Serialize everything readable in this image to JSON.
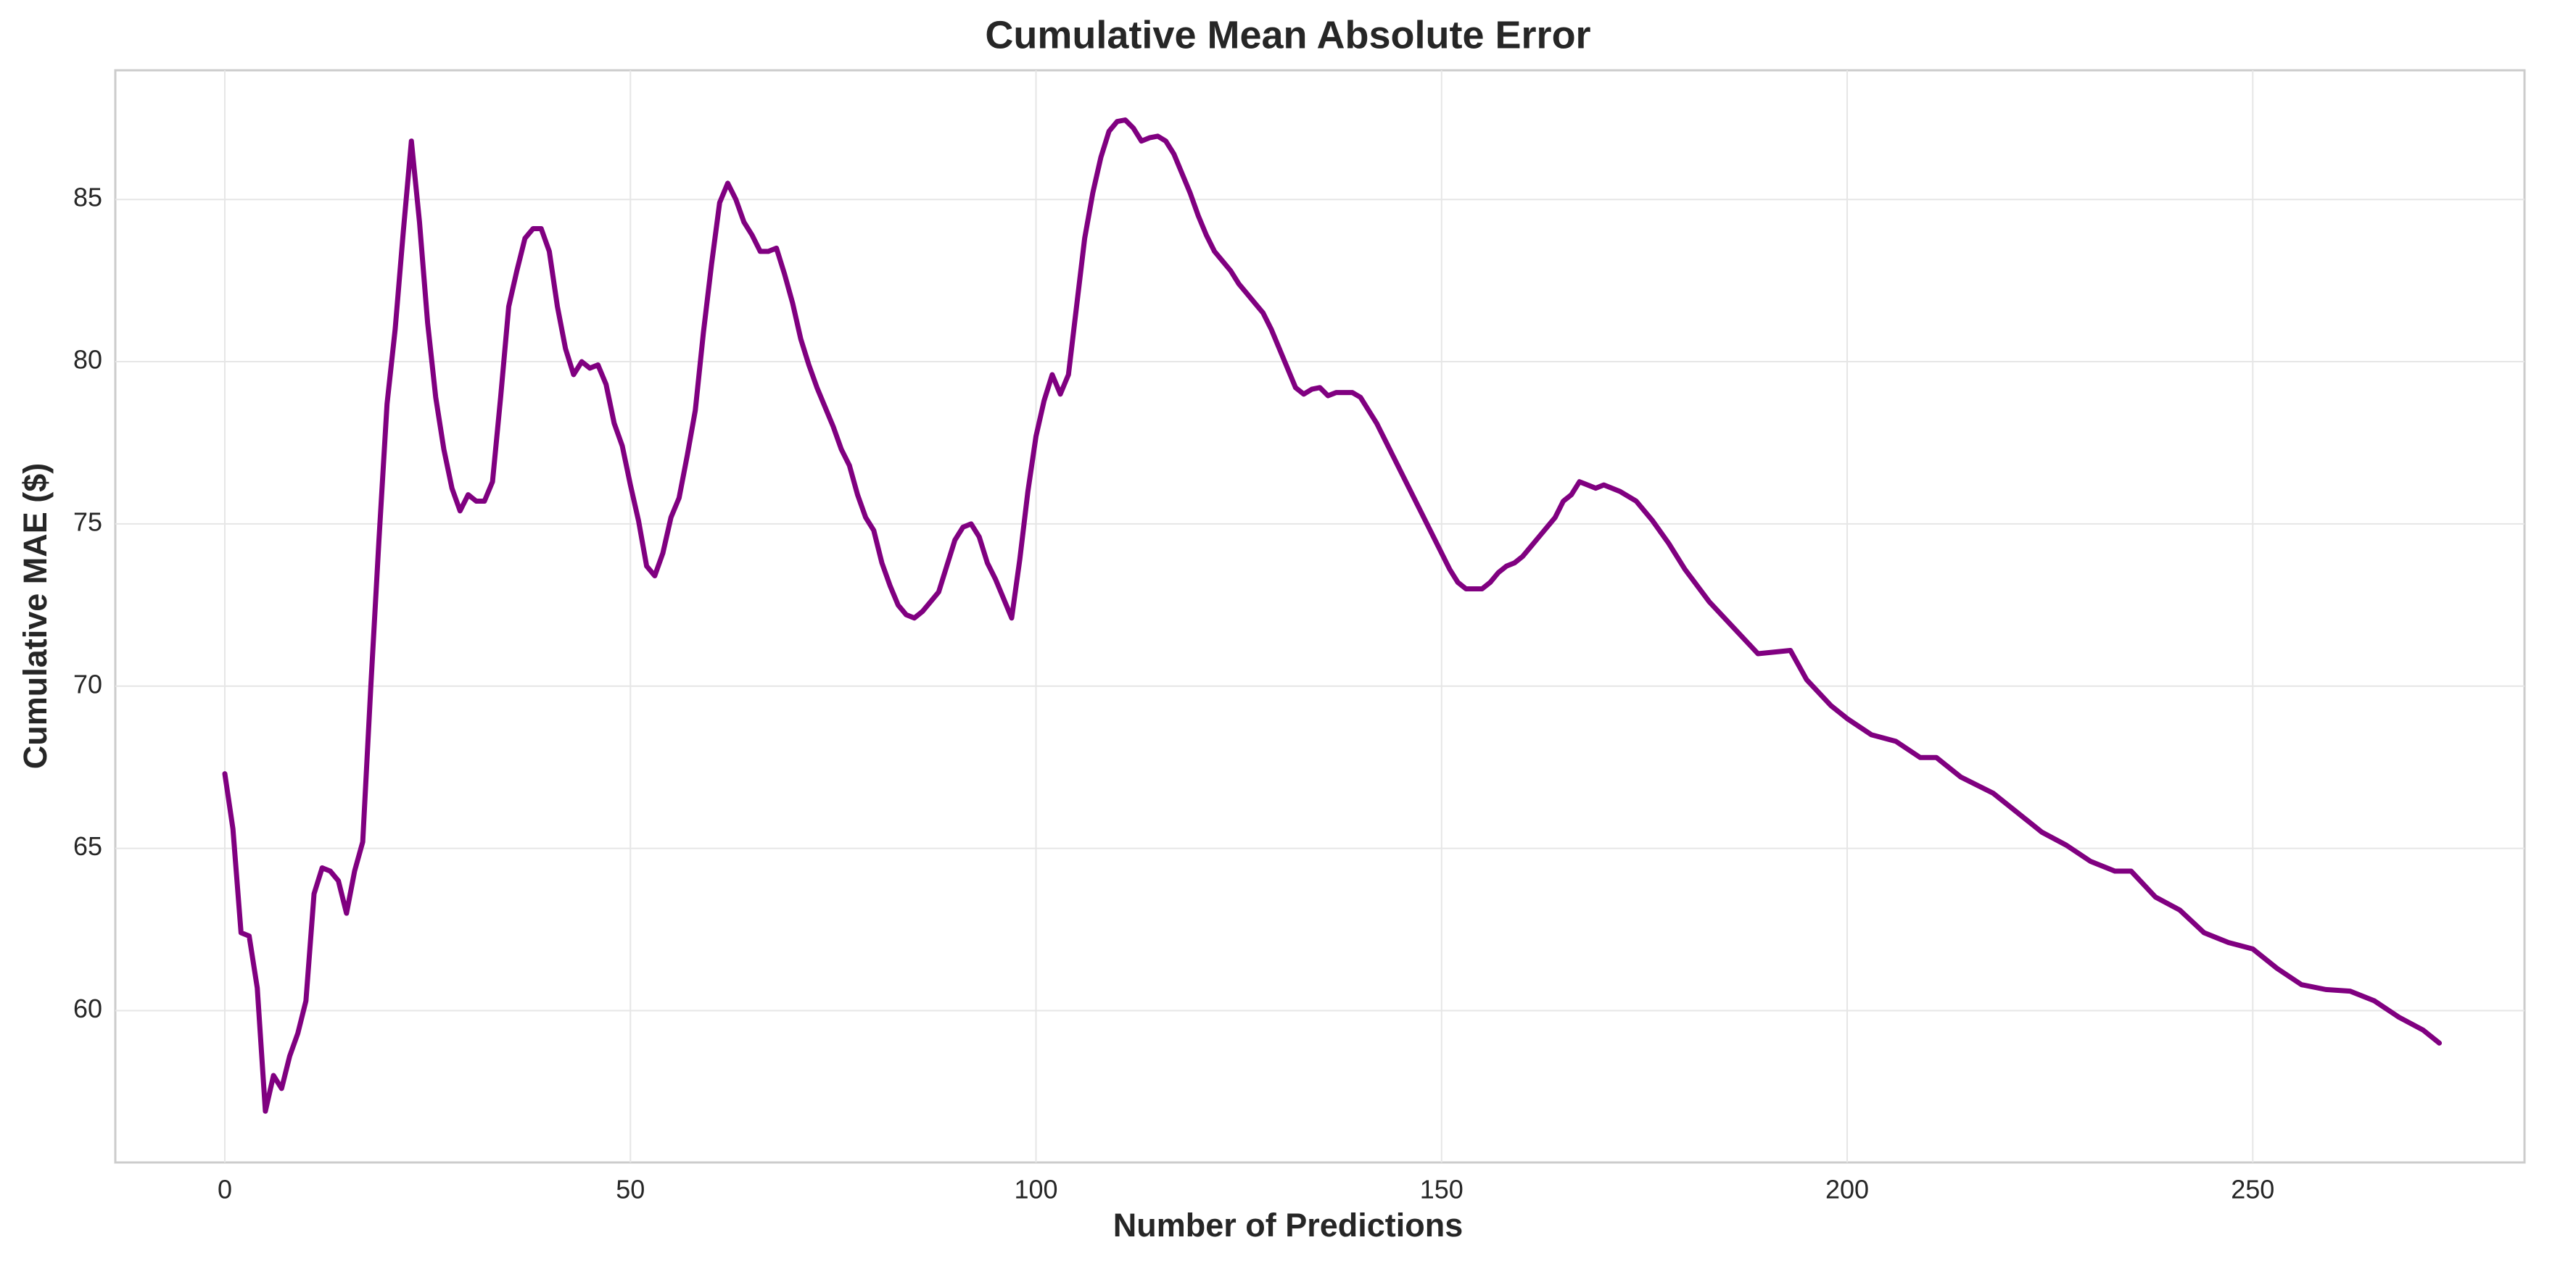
{
  "chart_data": {
    "type": "line",
    "title": "Cumulative Mean Absolute Error",
    "x_label": "Number of Predictions",
    "y_label": "Cumulative MAE ($)",
    "color": "#800080",
    "grid": true,
    "xlim": [
      -13.5,
      283.5
    ],
    "ylim": [
      55.32,
      88.98
    ],
    "xticks": [
      0,
      50,
      100,
      150,
      200,
      250
    ],
    "yticks": [
      60,
      65,
      70,
      75,
      80,
      85
    ],
    "x": [
      0,
      1,
      2,
      3,
      4,
      5,
      6,
      7,
      8,
      9,
      10,
      11,
      12,
      13,
      14,
      15,
      16,
      17,
      18,
      19,
      20,
      21,
      22,
      23,
      24,
      25,
      26,
      27,
      28,
      29,
      30,
      31,
      32,
      33,
      34,
      35,
      36,
      37,
      38,
      39,
      40,
      41,
      42,
      43,
      44,
      45,
      46,
      47,
      48,
      49,
      50,
      51,
      52,
      53,
      54,
      55,
      56,
      57,
      58,
      59,
      60,
      61,
      62,
      63,
      64,
      65,
      66,
      67,
      68,
      69,
      70,
      71,
      72,
      73,
      74,
      75,
      76,
      77,
      78,
      79,
      80,
      81,
      82,
      83,
      84,
      85,
      86,
      87,
      88,
      89,
      90,
      91,
      92,
      93,
      94,
      95,
      96,
      97,
      98,
      99,
      100,
      101,
      102,
      103,
      104,
      105,
      106,
      107,
      108,
      109,
      110,
      111,
      112,
      113,
      114,
      115,
      116,
      117,
      118,
      119,
      120,
      121,
      122,
      123,
      124,
      125,
      126,
      127,
      128,
      129,
      130,
      131,
      132,
      133,
      134,
      135,
      136,
      137,
      138,
      139,
      140,
      141,
      142,
      143,
      144,
      145,
      146,
      147,
      148,
      149,
      150,
      151,
      152,
      153,
      154,
      155,
      156,
      157,
      158,
      159,
      160,
      161,
      162,
      163,
      164,
      165,
      166,
      167,
      168,
      169,
      170,
      172,
      174,
      176,
      178,
      180,
      183,
      186,
      189,
      193,
      195,
      198,
      200,
      203,
      206,
      209,
      211,
      214,
      218,
      221,
      224,
      227,
      230,
      233,
      235,
      238,
      241,
      244,
      247,
      250,
      253,
      256,
      259,
      262,
      265,
      268,
      271,
      273
    ],
    "values": [
      67.3,
      65.6,
      62.4,
      62.3,
      60.7,
      56.9,
      58.0,
      57.6,
      58.6,
      59.3,
      60.3,
      63.6,
      64.4,
      64.3,
      64.0,
      63.0,
      64.3,
      65.2,
      70,
      74.5,
      78.7,
      81,
      84,
      86.8,
      84.3,
      81.2,
      78.9,
      77.3,
      76.1,
      75.4,
      75.9,
      75.7,
      75.7,
      76.3,
      78.9,
      81.7,
      82.8,
      83.8,
      84.1,
      84.1,
      83.4,
      81.7,
      80.4,
      79.6,
      80,
      79.8,
      79.9,
      79.3,
      78.1,
      77.4,
      76.2,
      75.1,
      73.7,
      73.4,
      74.1,
      75.2,
      75.8,
      77.1,
      78.5,
      80.9,
      83.0,
      84.9,
      85.5,
      85.0,
      84.3,
      83.9,
      83.4,
      83.4,
      83.5,
      82.7,
      81.8,
      80.7,
      79.9,
      79.2,
      78.6,
      78.0,
      77.3,
      76.8,
      75.9,
      75.2,
      74.8,
      73.8,
      73.1,
      72.5,
      72.2,
      72.1,
      72.3,
      72.6,
      72.9,
      73.7,
      74.5,
      74.9,
      75.0,
      74.6,
      73.8,
      73.3,
      72.7,
      72.1,
      73.9,
      76.0,
      77.7,
      78.8,
      79.6,
      79.0,
      79.6,
      81.7,
      83.8,
      85.2,
      86.3,
      87.1,
      87.4,
      87.45,
      87.2,
      86.8,
      86.9,
      86.95,
      86.8,
      86.4,
      85.8,
      85.2,
      84.5,
      83.9,
      83.4,
      83.1,
      82.8,
      82.4,
      82.1,
      81.8,
      81.5,
      81.0,
      80.4,
      79.8,
      79.2,
      79.0,
      79.15,
      79.2,
      78.95,
      79.05,
      79.05,
      79.05,
      78.9,
      78.5,
      78.1,
      77.6,
      77.1,
      76.6,
      76.1,
      75.6,
      75.1,
      74.6,
      74.1,
      73.6,
      73.2,
      73.0,
      73.0,
      73.0,
      73.2,
      73.5,
      73.7,
      73.8,
      74.0,
      74.3,
      74.6,
      74.9,
      75.2,
      75.7,
      75.9,
      76.3,
      76.2,
      76.1,
      76.2,
      76.0,
      75.7,
      75.1,
      74.4,
      73.6,
      72.6,
      71.8,
      71.0,
      71.1,
      70.2,
      69.4,
      69.0,
      68.5,
      68.3,
      67.8,
      67.8,
      67.2,
      66.7,
      66.1,
      65.5,
      65.1,
      64.6,
      64.3,
      64.3,
      63.5,
      63.1,
      62.4,
      62.1,
      61.9,
      61.3,
      60.8,
      60.65,
      60.6,
      60.3,
      59.8,
      59.4,
      59.0
    ]
  }
}
